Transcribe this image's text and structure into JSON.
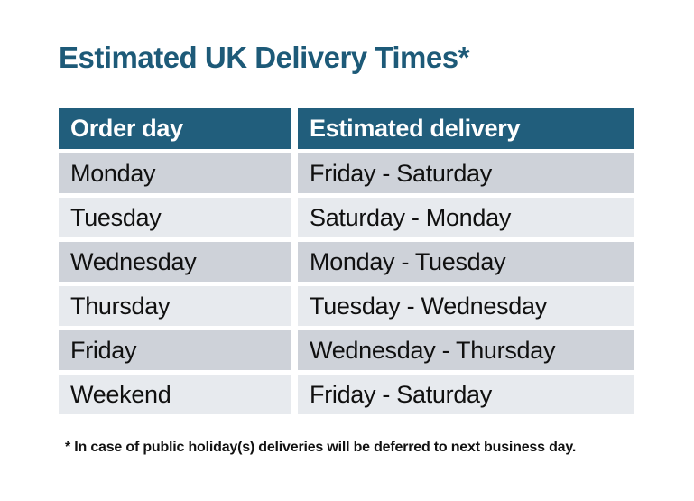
{
  "page": {
    "title": "Estimated UK Delivery Times*",
    "footnote": "* In case of public holiday(s) deliveries will be deferred to next business day."
  },
  "table": {
    "columns": [
      {
        "label": "Order day"
      },
      {
        "label": "Estimated delivery"
      }
    ],
    "rows": [
      {
        "order_day": "Monday",
        "estimated_delivery": "Friday - Saturday"
      },
      {
        "order_day": "Tuesday",
        "estimated_delivery": "Saturday - Monday"
      },
      {
        "order_day": "Wednesday",
        "estimated_delivery": "Monday - Tuesday"
      },
      {
        "order_day": "Thursday",
        "estimated_delivery": "Tuesday - Wednesday"
      },
      {
        "order_day": "Friday",
        "estimated_delivery": "Wednesday - Thursday"
      },
      {
        "order_day": "Weekend",
        "estimated_delivery": "Friday - Saturday"
      }
    ]
  },
  "colors": {
    "title_color": "#1d5a78",
    "header_bg": "#215e7c",
    "header_text": "#ffffff",
    "row_dark": "#ced2d9",
    "row_light": "#e7eaee",
    "body_text": "#101010",
    "footnote_text": "#111111"
  }
}
